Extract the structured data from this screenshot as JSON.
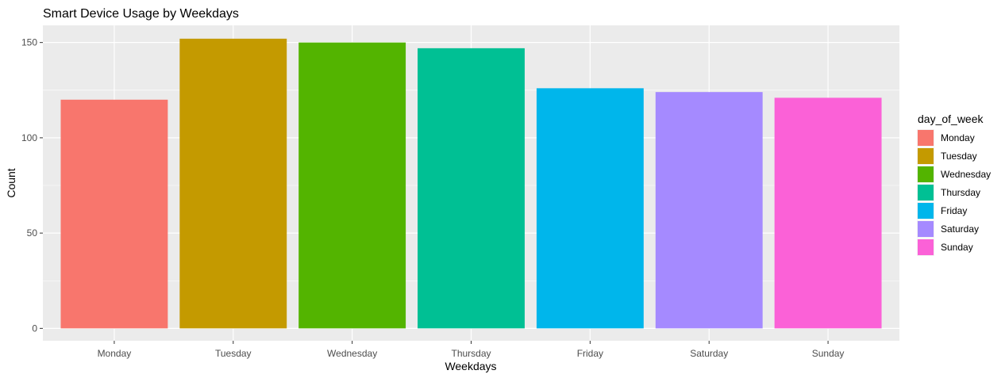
{
  "chart_data": {
    "type": "bar",
    "title": "Smart Device Usage by Weekdays",
    "xlabel": "Weekdays",
    "ylabel": "Count",
    "categories": [
      "Monday",
      "Tuesday",
      "Wednesday",
      "Thursday",
      "Friday",
      "Saturday",
      "Sunday"
    ],
    "values": [
      120,
      152,
      150,
      147,
      126,
      124,
      121
    ],
    "colors": [
      "#F8766D",
      "#C49A00",
      "#53B400",
      "#00C094",
      "#00B6EB",
      "#A58AFF",
      "#FB61D7"
    ],
    "ylim": [
      -6.5,
      159
    ],
    "yticks": [
      0,
      50,
      100,
      150
    ],
    "grid": true,
    "legend": {
      "title": "day_of_week",
      "position": "right",
      "entries": [
        "Monday",
        "Tuesday",
        "Wednesday",
        "Thursday",
        "Friday",
        "Saturday",
        "Sunday"
      ]
    }
  }
}
